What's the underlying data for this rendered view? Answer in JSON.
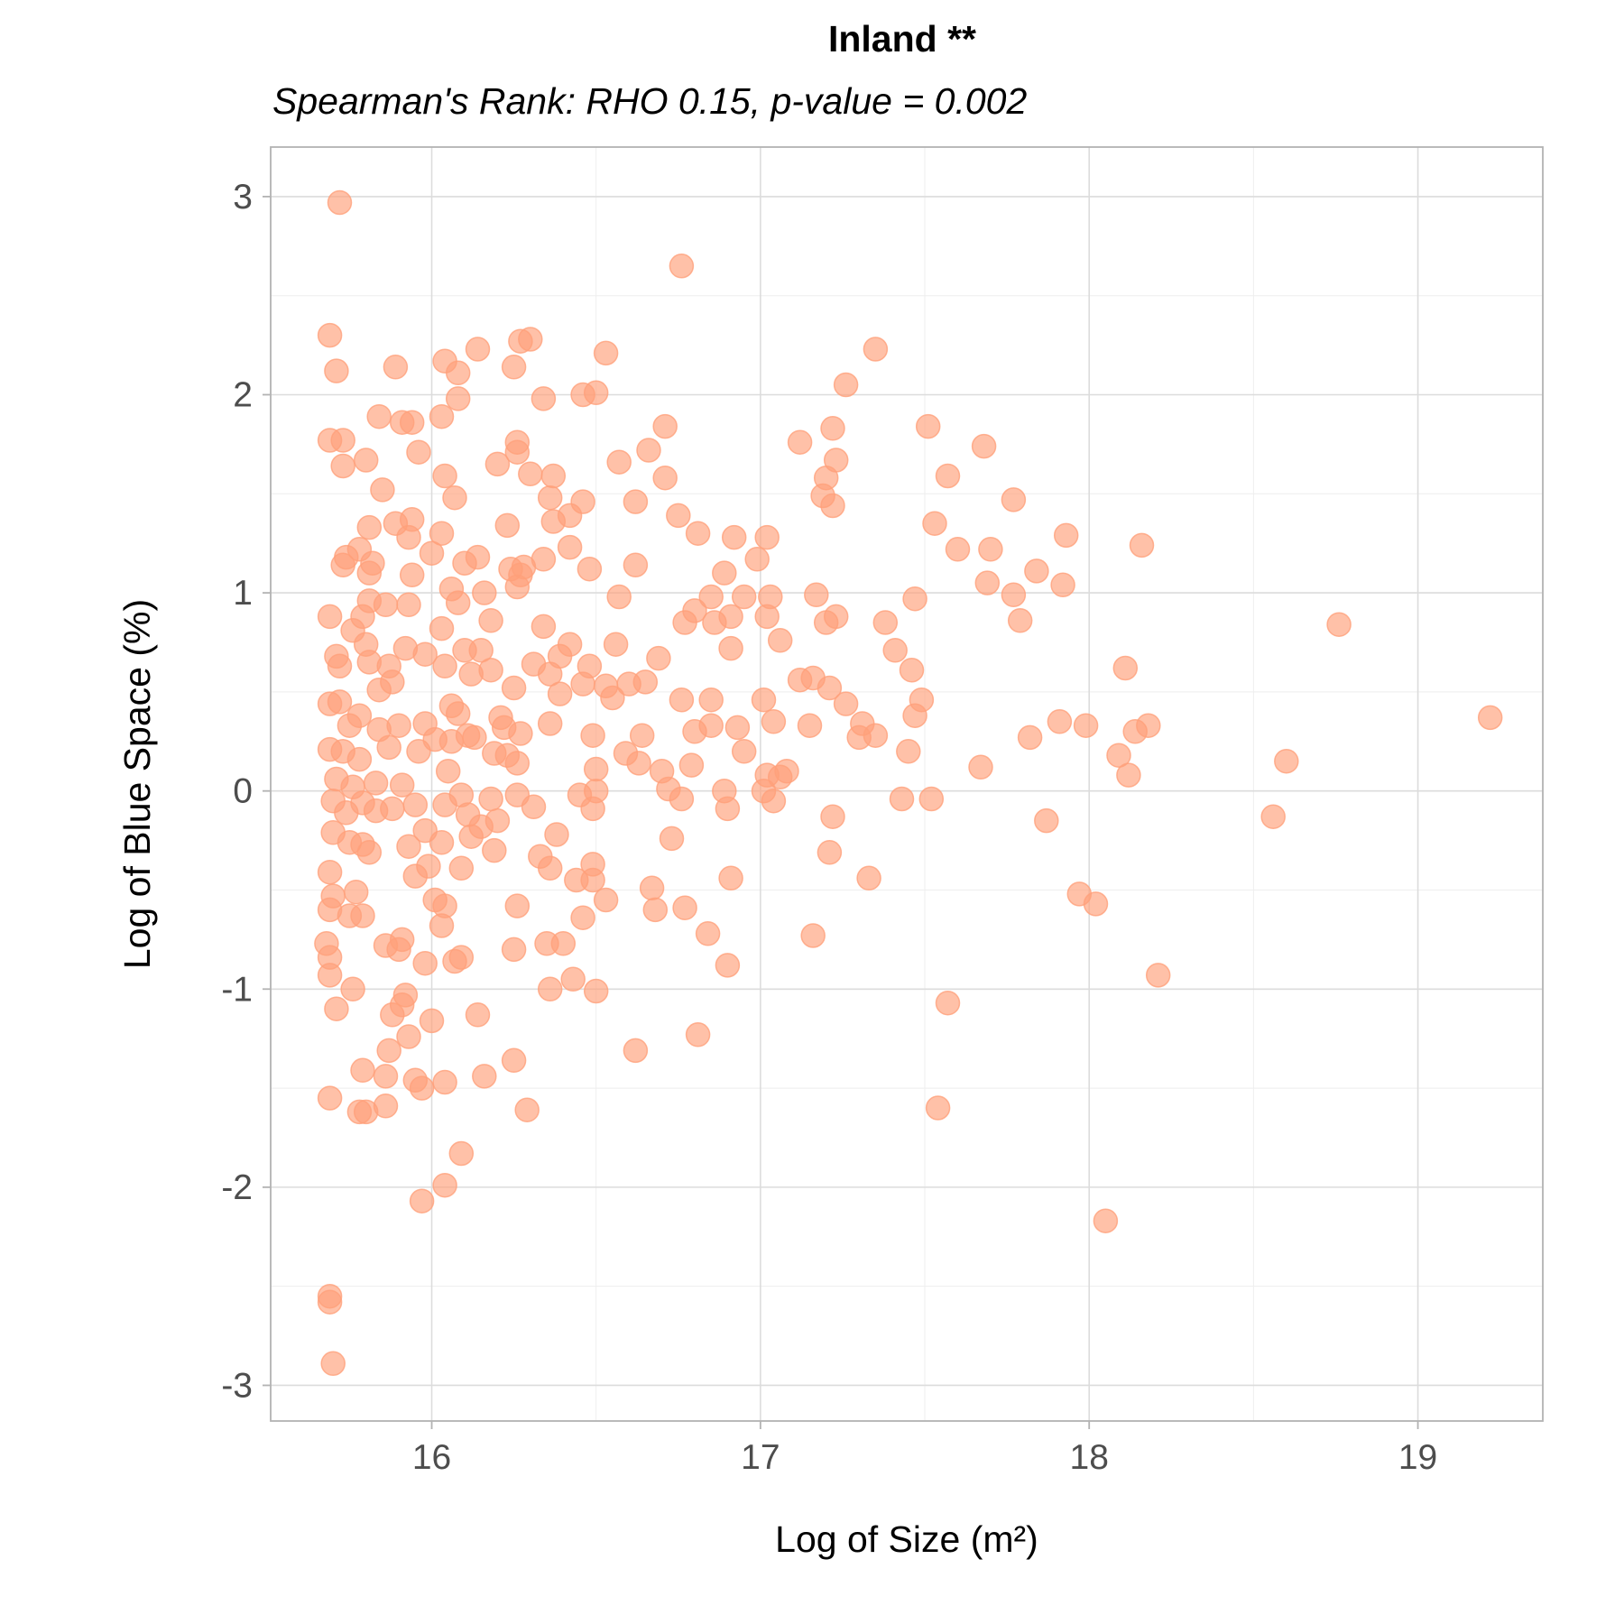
{
  "chart_data": {
    "type": "scatter",
    "title": "Inland **",
    "subtitle": "Spearman's Rank: RHO 0.15, p-value = 0.002",
    "xlabel": "Log of Size (m²)",
    "ylabel": "Log of Blue Space (%)",
    "xlim": [
      15.51,
      19.38
    ],
    "ylim": [
      -3.18,
      3.25
    ],
    "x_ticks": [
      16,
      17,
      18,
      19
    ],
    "y_ticks": [
      -3,
      -2,
      -1,
      0,
      1,
      2,
      3
    ],
    "x_tick_labels": [
      "16",
      "17",
      "18",
      "19"
    ],
    "y_tick_labels": [
      "-3",
      "-2",
      "-1",
      "0",
      "1",
      "2",
      "3"
    ],
    "grid": true,
    "point_color": "#FFA07A",
    "point_opacity": 0.65,
    "points": [
      [
        15.72,
        2.97
      ],
      [
        16.76,
        2.65
      ],
      [
        15.69,
        2.3
      ],
      [
        15.71,
        2.12
      ],
      [
        16.04,
        2.17
      ],
      [
        16.14,
        2.23
      ],
      [
        16.25,
        2.14
      ],
      [
        16.27,
        2.27
      ],
      [
        16.3,
        2.28
      ],
      [
        16.53,
        2.21
      ],
      [
        17.35,
        2.23
      ],
      [
        15.89,
        2.14
      ],
      [
        16.08,
        2.11
      ],
      [
        16.08,
        1.98
      ],
      [
        16.34,
        1.98
      ],
      [
        16.46,
        2.0
      ],
      [
        16.5,
        2.01
      ],
      [
        17.26,
        2.05
      ],
      [
        15.84,
        1.89
      ],
      [
        15.91,
        1.86
      ],
      [
        15.94,
        1.86
      ],
      [
        16.03,
        1.89
      ],
      [
        16.71,
        1.84
      ],
      [
        17.22,
        1.83
      ],
      [
        17.51,
        1.84
      ],
      [
        15.69,
        1.77
      ],
      [
        15.73,
        1.77
      ],
      [
        15.96,
        1.71
      ],
      [
        16.26,
        1.76
      ],
      [
        16.26,
        1.71
      ],
      [
        16.66,
        1.72
      ],
      [
        17.12,
        1.76
      ],
      [
        17.68,
        1.74
      ],
      [
        15.73,
        1.64
      ],
      [
        15.8,
        1.67
      ],
      [
        16.04,
        1.59
      ],
      [
        16.2,
        1.65
      ],
      [
        16.3,
        1.6
      ],
      [
        16.37,
        1.59
      ],
      [
        16.57,
        1.66
      ],
      [
        16.71,
        1.58
      ],
      [
        17.2,
        1.58
      ],
      [
        17.23,
        1.67
      ],
      [
        17.57,
        1.59
      ],
      [
        15.85,
        1.52
      ],
      [
        16.07,
        1.48
      ],
      [
        16.36,
        1.48
      ],
      [
        16.46,
        1.46
      ],
      [
        16.62,
        1.46
      ],
      [
        17.19,
        1.49
      ],
      [
        17.22,
        1.44
      ],
      [
        17.77,
        1.47
      ],
      [
        15.81,
        1.33
      ],
      [
        15.89,
        1.35
      ],
      [
        15.94,
        1.37
      ],
      [
        16.03,
        1.3
      ],
      [
        16.23,
        1.34
      ],
      [
        16.37,
        1.36
      ],
      [
        16.42,
        1.39
      ],
      [
        16.75,
        1.39
      ],
      [
        16.81,
        1.3
      ],
      [
        16.92,
        1.28
      ],
      [
        17.02,
        1.28
      ],
      [
        17.53,
        1.35
      ],
      [
        17.93,
        1.29
      ],
      [
        18.16,
        1.24
      ],
      [
        15.74,
        1.18
      ],
      [
        15.78,
        1.22
      ],
      [
        15.82,
        1.15
      ],
      [
        15.93,
        1.28
      ],
      [
        16.0,
        1.2
      ],
      [
        16.1,
        1.15
      ],
      [
        16.14,
        1.18
      ],
      [
        16.24,
        1.12
      ],
      [
        16.28,
        1.13
      ],
      [
        16.34,
        1.17
      ],
      [
        16.42,
        1.23
      ],
      [
        16.48,
        1.12
      ],
      [
        16.62,
        1.14
      ],
      [
        16.89,
        1.1
      ],
      [
        16.99,
        1.17
      ],
      [
        17.6,
        1.22
      ],
      [
        17.7,
        1.22
      ],
      [
        17.84,
        1.11
      ],
      [
        15.73,
        1.14
      ],
      [
        15.81,
        1.1
      ],
      [
        15.94,
        1.09
      ],
      [
        16.06,
        1.02
      ],
      [
        16.16,
        1.0
      ],
      [
        16.26,
        1.03
      ],
      [
        16.27,
        1.09
      ],
      [
        16.57,
        0.98
      ],
      [
        16.85,
        0.98
      ],
      [
        16.95,
        0.98
      ],
      [
        17.03,
        0.98
      ],
      [
        17.17,
        0.99
      ],
      [
        17.47,
        0.97
      ],
      [
        17.69,
        1.05
      ],
      [
        17.77,
        0.99
      ],
      [
        17.92,
        1.04
      ],
      [
        15.69,
        0.88
      ],
      [
        15.79,
        0.88
      ],
      [
        15.81,
        0.96
      ],
      [
        15.86,
        0.94
      ],
      [
        15.93,
        0.94
      ],
      [
        16.08,
        0.95
      ],
      [
        16.18,
        0.86
      ],
      [
        16.34,
        0.83
      ],
      [
        16.77,
        0.85
      ],
      [
        16.8,
        0.91
      ],
      [
        16.86,
        0.85
      ],
      [
        16.91,
        0.88
      ],
      [
        17.02,
        0.88
      ],
      [
        17.2,
        0.85
      ],
      [
        17.23,
        0.88
      ],
      [
        17.38,
        0.85
      ],
      [
        17.79,
        0.86
      ],
      [
        18.76,
        0.84
      ],
      [
        15.71,
        0.68
      ],
      [
        15.76,
        0.81
      ],
      [
        15.8,
        0.74
      ],
      [
        15.87,
        0.63
      ],
      [
        15.92,
        0.72
      ],
      [
        15.98,
        0.69
      ],
      [
        16.03,
        0.82
      ],
      [
        16.1,
        0.71
      ],
      [
        16.15,
        0.71
      ],
      [
        16.18,
        0.61
      ],
      [
        16.31,
        0.64
      ],
      [
        16.39,
        0.68
      ],
      [
        16.42,
        0.74
      ],
      [
        16.48,
        0.63
      ],
      [
        16.56,
        0.74
      ],
      [
        16.69,
        0.67
      ],
      [
        16.91,
        0.72
      ],
      [
        17.06,
        0.76
      ],
      [
        17.41,
        0.71
      ],
      [
        17.46,
        0.61
      ],
      [
        18.11,
        0.62
      ],
      [
        15.72,
        0.63
      ],
      [
        15.81,
        0.65
      ],
      [
        15.88,
        0.55
      ],
      [
        15.84,
        0.51
      ],
      [
        16.04,
        0.63
      ],
      [
        16.12,
        0.59
      ],
      [
        16.25,
        0.52
      ],
      [
        16.36,
        0.59
      ],
      [
        16.39,
        0.49
      ],
      [
        16.46,
        0.54
      ],
      [
        16.53,
        0.53
      ],
      [
        16.6,
        0.54
      ],
      [
        16.65,
        0.55
      ],
      [
        16.76,
        0.46
      ],
      [
        16.85,
        0.46
      ],
      [
        17.01,
        0.46
      ],
      [
        17.12,
        0.56
      ],
      [
        17.16,
        0.57
      ],
      [
        17.21,
        0.52
      ],
      [
        17.26,
        0.44
      ],
      [
        17.49,
        0.46
      ],
      [
        15.69,
        0.44
      ],
      [
        15.72,
        0.45
      ],
      [
        15.75,
        0.33
      ],
      [
        15.78,
        0.38
      ],
      [
        15.84,
        0.31
      ],
      [
        15.9,
        0.33
      ],
      [
        15.98,
        0.34
      ],
      [
        16.06,
        0.43
      ],
      [
        16.08,
        0.39
      ],
      [
        16.11,
        0.28
      ],
      [
        16.21,
        0.37
      ],
      [
        16.22,
        0.32
      ],
      [
        16.27,
        0.29
      ],
      [
        16.36,
        0.34
      ],
      [
        16.49,
        0.28
      ],
      [
        16.55,
        0.47
      ],
      [
        16.64,
        0.28
      ],
      [
        16.8,
        0.3
      ],
      [
        16.85,
        0.33
      ],
      [
        16.93,
        0.32
      ],
      [
        17.04,
        0.35
      ],
      [
        17.15,
        0.33
      ],
      [
        17.31,
        0.34
      ],
      [
        17.35,
        0.28
      ],
      [
        17.47,
        0.38
      ],
      [
        17.82,
        0.27
      ],
      [
        17.91,
        0.35
      ],
      [
        17.99,
        0.33
      ],
      [
        18.14,
        0.3
      ],
      [
        18.18,
        0.33
      ],
      [
        19.22,
        0.37
      ],
      [
        15.69,
        0.21
      ],
      [
        15.73,
        0.2
      ],
      [
        15.78,
        0.16
      ],
      [
        15.87,
        0.22
      ],
      [
        15.96,
        0.2
      ],
      [
        16.01,
        0.26
      ],
      [
        16.06,
        0.25
      ],
      [
        16.13,
        0.27
      ],
      [
        16.19,
        0.19
      ],
      [
        16.23,
        0.18
      ],
      [
        16.26,
        0.14
      ],
      [
        16.5,
        0.11
      ],
      [
        16.59,
        0.19
      ],
      [
        16.63,
        0.14
      ],
      [
        16.7,
        0.1
      ],
      [
        16.79,
        0.13
      ],
      [
        16.95,
        0.2
      ],
      [
        17.02,
        0.08
      ],
      [
        17.06,
        0.07
      ],
      [
        17.08,
        0.1
      ],
      [
        17.3,
        0.27
      ],
      [
        17.45,
        0.2
      ],
      [
        17.67,
        0.12
      ],
      [
        18.09,
        0.18
      ],
      [
        18.12,
        0.08
      ],
      [
        18.6,
        0.15
      ],
      [
        15.71,
        0.06
      ],
      [
        15.76,
        0.02
      ],
      [
        15.83,
        0.04
      ],
      [
        15.91,
        0.03
      ],
      [
        16.05,
        0.1
      ],
      [
        16.09,
        -0.02
      ],
      [
        16.18,
        -0.04
      ],
      [
        16.26,
        -0.02
      ],
      [
        16.31,
        -0.08
      ],
      [
        16.45,
        -0.02
      ],
      [
        16.5,
        0.0
      ],
      [
        16.72,
        0.01
      ],
      [
        16.76,
        -0.04
      ],
      [
        16.89,
        0.0
      ],
      [
        17.01,
        0.0
      ],
      [
        17.04,
        -0.05
      ],
      [
        17.43,
        -0.04
      ],
      [
        17.52,
        -0.04
      ],
      [
        15.7,
        -0.05
      ],
      [
        15.74,
        -0.11
      ],
      [
        15.79,
        -0.06
      ],
      [
        15.83,
        -0.1
      ],
      [
        15.88,
        -0.09
      ],
      [
        15.95,
        -0.07
      ],
      [
        16.04,
        -0.07
      ],
      [
        16.11,
        -0.12
      ],
      [
        16.15,
        -0.18
      ],
      [
        16.2,
        -0.15
      ],
      [
        16.38,
        -0.22
      ],
      [
        16.49,
        -0.09
      ],
      [
        16.73,
        -0.24
      ],
      [
        16.9,
        -0.09
      ],
      [
        17.22,
        -0.13
      ],
      [
        17.87,
        -0.15
      ],
      [
        18.56,
        -0.13
      ],
      [
        15.7,
        -0.21
      ],
      [
        15.75,
        -0.26
      ],
      [
        15.79,
        -0.27
      ],
      [
        15.81,
        -0.31
      ],
      [
        15.93,
        -0.28
      ],
      [
        15.98,
        -0.2
      ],
      [
        16.03,
        -0.26
      ],
      [
        16.12,
        -0.23
      ],
      [
        16.19,
        -0.3
      ],
      [
        16.33,
        -0.33
      ],
      [
        16.36,
        -0.39
      ],
      [
        16.49,
        -0.37
      ],
      [
        17.21,
        -0.31
      ],
      [
        15.69,
        -0.41
      ],
      [
        15.95,
        -0.43
      ],
      [
        15.99,
        -0.38
      ],
      [
        16.09,
        -0.39
      ],
      [
        16.44,
        -0.45
      ],
      [
        16.49,
        -0.45
      ],
      [
        16.67,
        -0.49
      ],
      [
        16.91,
        -0.44
      ],
      [
        17.33,
        -0.44
      ],
      [
        15.7,
        -0.53
      ],
      [
        15.77,
        -0.51
      ],
      [
        15.75,
        -0.63
      ],
      [
        16.01,
        -0.55
      ],
      [
        16.04,
        -0.58
      ],
      [
        16.26,
        -0.58
      ],
      [
        16.53,
        -0.55
      ],
      [
        16.68,
        -0.6
      ],
      [
        16.77,
        -0.59
      ],
      [
        17.97,
        -0.52
      ],
      [
        18.02,
        -0.57
      ],
      [
        15.69,
        -0.6
      ],
      [
        15.79,
        -0.63
      ],
      [
        16.03,
        -0.68
      ],
      [
        16.46,
        -0.64
      ],
      [
        16.84,
        -0.72
      ],
      [
        17.16,
        -0.73
      ],
      [
        15.68,
        -0.77
      ],
      [
        15.86,
        -0.78
      ],
      [
        15.9,
        -0.8
      ],
      [
        15.91,
        -0.75
      ],
      [
        16.09,
        -0.84
      ],
      [
        16.25,
        -0.8
      ],
      [
        16.35,
        -0.77
      ],
      [
        16.4,
        -0.77
      ],
      [
        15.69,
        -0.84
      ],
      [
        15.98,
        -0.87
      ],
      [
        16.07,
        -0.86
      ],
      [
        16.9,
        -0.88
      ],
      [
        15.69,
        -0.93
      ],
      [
        15.76,
        -1.0
      ],
      [
        15.92,
        -1.03
      ],
      [
        16.36,
        -1.0
      ],
      [
        16.43,
        -0.95
      ],
      [
        16.5,
        -1.01
      ],
      [
        18.21,
        -0.93
      ],
      [
        15.71,
        -1.1
      ],
      [
        15.88,
        -1.13
      ],
      [
        15.91,
        -1.08
      ],
      [
        16.0,
        -1.16
      ],
      [
        16.14,
        -1.13
      ],
      [
        17.57,
        -1.07
      ],
      [
        15.93,
        -1.24
      ],
      [
        15.87,
        -1.31
      ],
      [
        16.25,
        -1.36
      ],
      [
        16.62,
        -1.31
      ],
      [
        16.81,
        -1.23
      ],
      [
        15.79,
        -1.41
      ],
      [
        15.86,
        -1.44
      ],
      [
        15.95,
        -1.46
      ],
      [
        16.04,
        -1.47
      ],
      [
        16.16,
        -1.44
      ],
      [
        15.97,
        -1.5
      ],
      [
        15.69,
        -1.55
      ],
      [
        15.86,
        -1.59
      ],
      [
        15.78,
        -1.62
      ],
      [
        15.8,
        -1.62
      ],
      [
        16.29,
        -1.61
      ],
      [
        17.54,
        -1.6
      ],
      [
        16.09,
        -1.83
      ],
      [
        16.04,
        -1.99
      ],
      [
        15.97,
        -2.07
      ],
      [
        18.05,
        -2.17
      ],
      [
        15.69,
        -2.55
      ],
      [
        15.69,
        -2.58
      ],
      [
        15.7,
        -2.89
      ]
    ]
  }
}
